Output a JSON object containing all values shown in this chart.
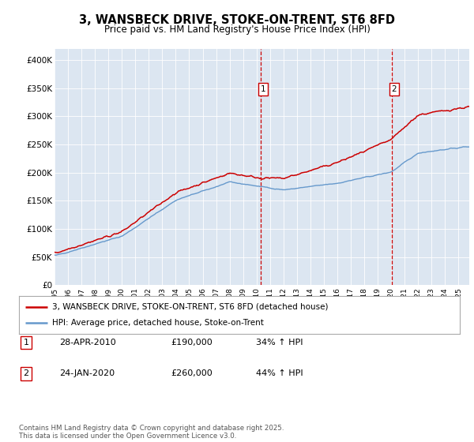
{
  "title": "3, WANSBECK DRIVE, STOKE-ON-TRENT, ST6 8FD",
  "subtitle": "Price paid vs. HM Land Registry's House Price Index (HPI)",
  "yticks": [
    0,
    50000,
    100000,
    150000,
    200000,
    250000,
    300000,
    350000,
    400000
  ],
  "ytick_labels": [
    "£0",
    "£50K",
    "£100K",
    "£150K",
    "£200K",
    "£250K",
    "£300K",
    "£350K",
    "£400K"
  ],
  "ylim": [
    0,
    420000
  ],
  "xlim_start": 1995.0,
  "xlim_end": 2025.8,
  "xticks": [
    1995,
    1996,
    1997,
    1998,
    1999,
    2000,
    2001,
    2002,
    2003,
    2004,
    2005,
    2006,
    2007,
    2008,
    2009,
    2010,
    2011,
    2012,
    2013,
    2014,
    2015,
    2016,
    2017,
    2018,
    2019,
    2020,
    2021,
    2022,
    2023,
    2024,
    2025
  ],
  "plot_bg": "#dce6f1",
  "line1_color": "#cc0000",
  "line2_color": "#6699cc",
  "vline_color": "#cc0000",
  "legend_label1": "3, WANSBECK DRIVE, STOKE-ON-TRENT, ST6 8FD (detached house)",
  "legend_label2": "HPI: Average price, detached house, Stoke-on-Trent",
  "sale1_date": 2010.32,
  "sale1_price": 190000,
  "sale1_label": "1",
  "sale2_date": 2020.07,
  "sale2_price": 260000,
  "sale2_label": "2",
  "footer": "Contains HM Land Registry data © Crown copyright and database right 2025.\nThis data is licensed under the Open Government Licence v3.0.",
  "table_row1": [
    "1",
    "28-APR-2010",
    "£190,000",
    "34% ↑ HPI"
  ],
  "table_row2": [
    "2",
    "24-JAN-2020",
    "£260,000",
    "44% ↑ HPI"
  ]
}
